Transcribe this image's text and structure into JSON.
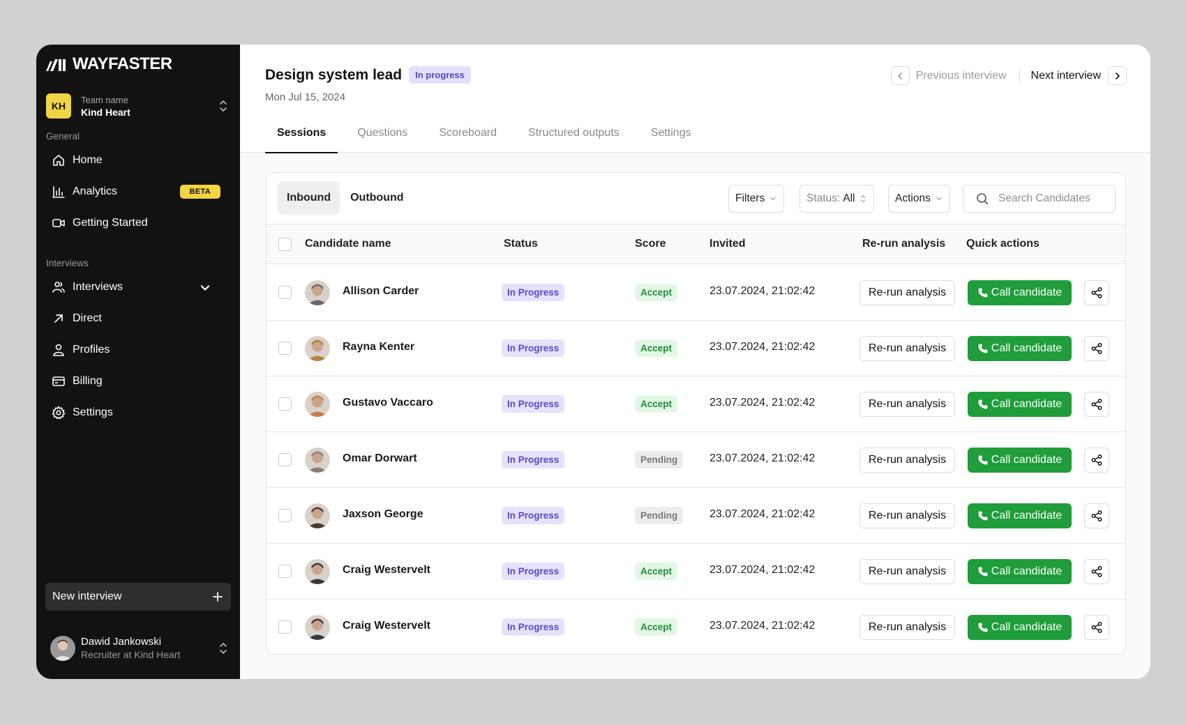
{
  "brand": {
    "name": "WAYFASTER"
  },
  "team": {
    "initials": "KH",
    "label": "Team name",
    "name": "Kind Heart"
  },
  "sidebar": {
    "general_label": "General",
    "interviews_label": "Interviews",
    "items": [
      {
        "label": "Home",
        "icon": "home-icon"
      },
      {
        "label": "Analytics",
        "icon": "bar-chart-icon",
        "badge": "BETA"
      },
      {
        "label": "Getting Started",
        "icon": "video-icon"
      },
      {
        "label": "Interviews",
        "icon": "users-icon"
      },
      {
        "label": "Direct",
        "icon": "arrow-up-right-icon"
      },
      {
        "label": "Profiles",
        "icon": "user-icon"
      },
      {
        "label": "Billing",
        "icon": "credit-card-icon"
      },
      {
        "label": "Settings",
        "icon": "gear-icon"
      }
    ],
    "new_interview": "New interview"
  },
  "user": {
    "name": "Dawid Jankowski",
    "role": "Recruiter at Kind Heart"
  },
  "header": {
    "title": "Design system lead",
    "status": "In progress",
    "date": "Mon Jul 15, 2024",
    "prev": "Previous interview",
    "next": "Next interview"
  },
  "tabs": [
    "Sessions",
    "Questions",
    "Scoreboard",
    "Structured outputs",
    "Settings"
  ],
  "toolbar": {
    "inbound": "Inbound",
    "outbound": "Outbound",
    "filters": "Filters",
    "status_label": "Status:",
    "status_value": "All",
    "actions": "Actions",
    "search_placeholder": "Search Candidates"
  },
  "table": {
    "columns": {
      "name": "Candidate name",
      "status": "Status",
      "score": "Score",
      "invited": "Invited",
      "rerun": "Re-run analysis",
      "quick": "Quick actions"
    },
    "rerun_label": "Re-run analysis",
    "call_label": "Call candidate",
    "rows": [
      {
        "name": "Allison Carder",
        "status": "In Progress",
        "score": "Accept",
        "invited": "23.07.2024, 21:02:42",
        "avatar_color": "#6b6b6b"
      },
      {
        "name": "Rayna Kenter",
        "status": "In Progress",
        "score": "Accept",
        "invited": "23.07.2024, 21:02:42",
        "avatar_color": "#b5813e"
      },
      {
        "name": "Gustavo Vaccaro",
        "status": "In Progress",
        "score": "Accept",
        "invited": "23.07.2024, 21:02:42",
        "avatar_color": "#c97a44"
      },
      {
        "name": "Omar Dorwart",
        "status": "In Progress",
        "score": "Pending",
        "invited": "23.07.2024, 21:02:42",
        "avatar_color": "#8c7f76"
      },
      {
        "name": "Jaxson George",
        "status": "In Progress",
        "score": "Pending",
        "invited": "23.07.2024, 21:02:42",
        "avatar_color": "#4a3a30"
      },
      {
        "name": "Craig Westervelt",
        "status": "In Progress",
        "score": "Accept",
        "invited": "23.07.2024, 21:02:42",
        "avatar_color": "#3a3a3a"
      },
      {
        "name": "Craig Westervelt",
        "status": "In Progress",
        "score": "Accept",
        "invited": "23.07.2024, 21:02:42",
        "avatar_color": "#3a3a3a"
      }
    ]
  }
}
